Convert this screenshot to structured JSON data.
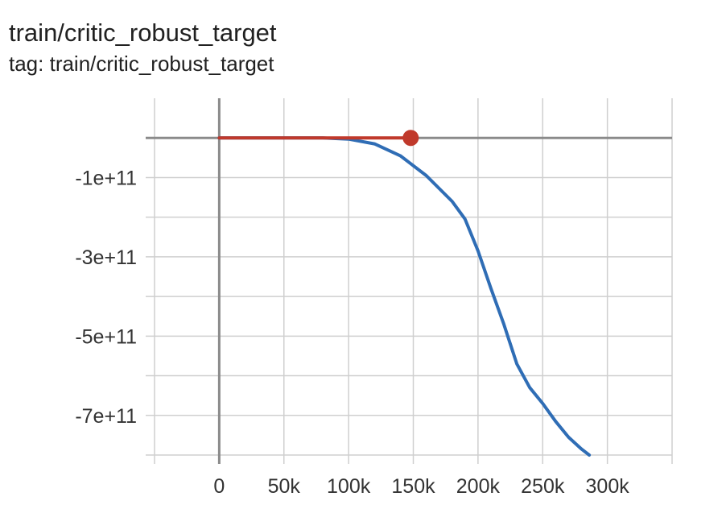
{
  "header": {
    "title": "train/critic_robust_target",
    "subtitle": "tag: train/critic_robust_target"
  },
  "chart_data": {
    "type": "line",
    "title": "train/critic_robust_target",
    "subtitle": "tag: train/critic_robust_target",
    "xlabel": "",
    "ylabel": "",
    "xlim": [
      -50000,
      350000
    ],
    "ylim": [
      -800000000000,
      100000000000
    ],
    "x_ticks": [
      0,
      50000,
      100000,
      150000,
      200000,
      250000,
      300000
    ],
    "x_tick_labels": [
      "0",
      "50k",
      "100k",
      "150k",
      "200k",
      "250k",
      "300k"
    ],
    "x_minor_grid": [
      -50000,
      350000
    ],
    "y_ticks": [
      -100000000000,
      -300000000000,
      -500000000000,
      -700000000000
    ],
    "y_tick_labels": [
      "-1e+11",
      "-3e+11",
      "-5e+11",
      "-7e+11"
    ],
    "y_minor_grid": [
      0,
      -200000000000,
      -400000000000,
      -600000000000,
      -800000000000
    ],
    "grid": true,
    "zero_axes_emphasized": true,
    "series": [
      {
        "color": "#2f6db5",
        "x": [
          0,
          40000,
          80000,
          100000,
          120000,
          140000,
          160000,
          180000,
          190000,
          200000,
          210000,
          220000,
          230000,
          240000,
          250000,
          260000,
          270000,
          280000,
          286000
        ],
        "y": [
          0,
          0,
          -200000000,
          -3000000000,
          -15000000000,
          -45000000000,
          -95000000000,
          -160000000000,
          -205000000000,
          -285000000000,
          -380000000000,
          -470000000000,
          -570000000000,
          -630000000000,
          -670000000000,
          -715000000000,
          -755000000000,
          -785000000000,
          -800000000000
        ]
      },
      {
        "color": "#c0392b",
        "x": [
          0,
          148000
        ],
        "y": [
          0,
          0
        ],
        "end_marker": true
      }
    ]
  }
}
